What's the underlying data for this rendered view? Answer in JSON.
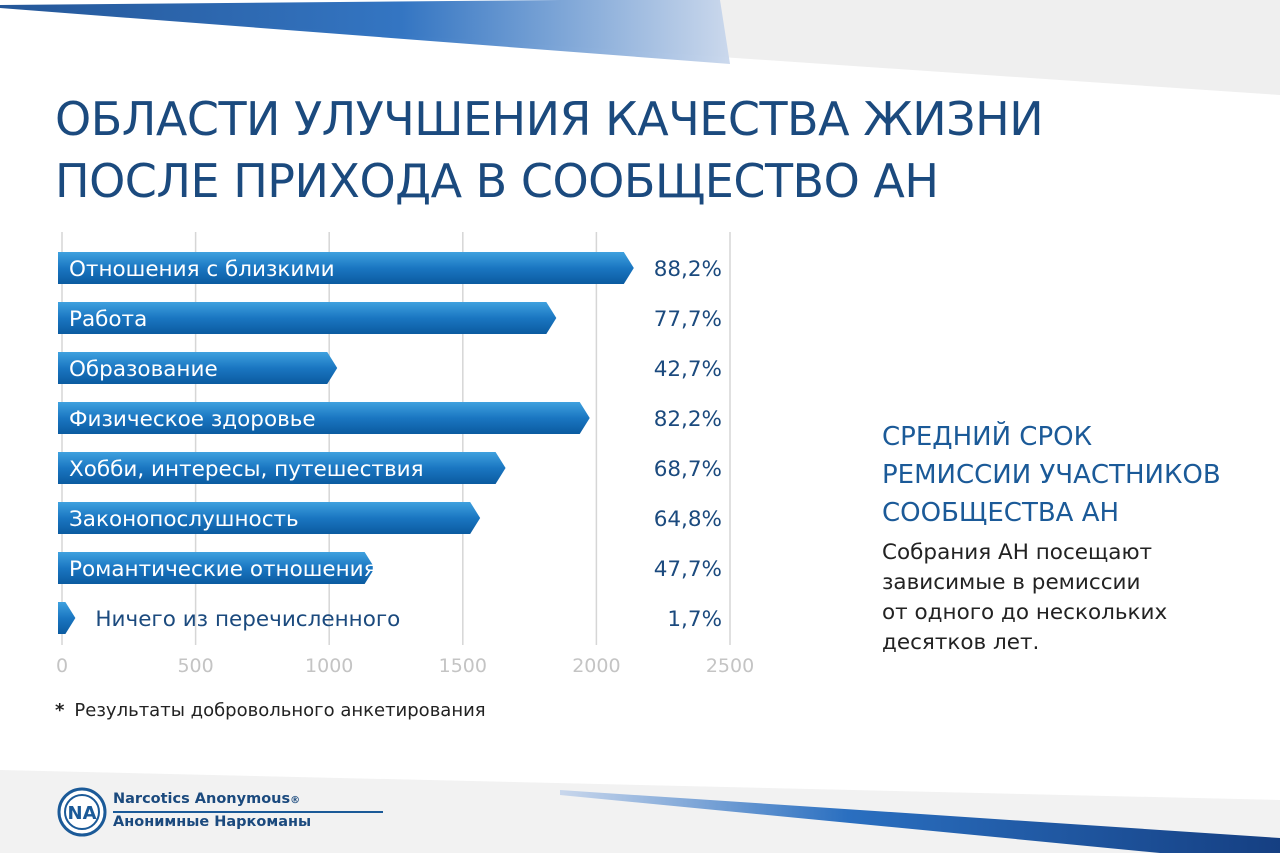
{
  "colors": {
    "title": "#1b4a7e",
    "bar_dark": "#0b5ba0",
    "bar_light": "#3fa1df",
    "grid": "#d6d6d6",
    "accent_stripe": "#1f5ea8"
  },
  "title": {
    "line1": "ОБЛАСТИ УЛУЧШЕНИЯ КАЧЕСТВА ЖИЗНИ",
    "line2": "ПОСЛЕ ПРИХОДА В СООБЩЕСТВО АН"
  },
  "chart_data": {
    "type": "bar",
    "orientation": "horizontal",
    "categories": [
      "Отношения с близкими",
      "Работа",
      "Образование",
      "Физическое здоровье",
      "Хобби, интересы, путешествия",
      "Законопослушность",
      "Романтические отношения",
      "Ничего из перечисленного"
    ],
    "values": [
      2140,
      1850,
      1030,
      1975,
      1660,
      1565,
      1170,
      50
    ],
    "value_labels": [
      "88,2%",
      "77,7%",
      "42,7%",
      "82,2%",
      "68,7%",
      "64,8%",
      "47,7%",
      "1,7%"
    ],
    "x_ticks": [
      0,
      500,
      1000,
      1500,
      2000,
      2500
    ],
    "x_tick_labels": [
      "0",
      "500",
      "1000",
      "1500",
      "2000",
      "2500"
    ],
    "xlim": [
      0,
      2500
    ],
    "grid": true,
    "xlabel": "",
    "ylabel": ""
  },
  "footnote": {
    "star": "*",
    "text": "Результаты добровольного анкетирования"
  },
  "side_panel": {
    "title_line1": "СРЕДНИЙ СРОК",
    "title_line2": "РЕМИССИИ УЧАСТНИКОВ",
    "title_line3": "СООБЩЕСТВА АН",
    "text_line1": "Собрания АН посещают",
    "text_line2": "зависимые в ремиссии",
    "text_line3": "от одного до нескольких",
    "text_line4": "десятков лет."
  },
  "logo": {
    "mark": "NA",
    "line1": "Narcotics Anonymous",
    "registered": "®",
    "line2": "Анонимные Наркоманы",
    "icon": "na-logo-icon"
  }
}
